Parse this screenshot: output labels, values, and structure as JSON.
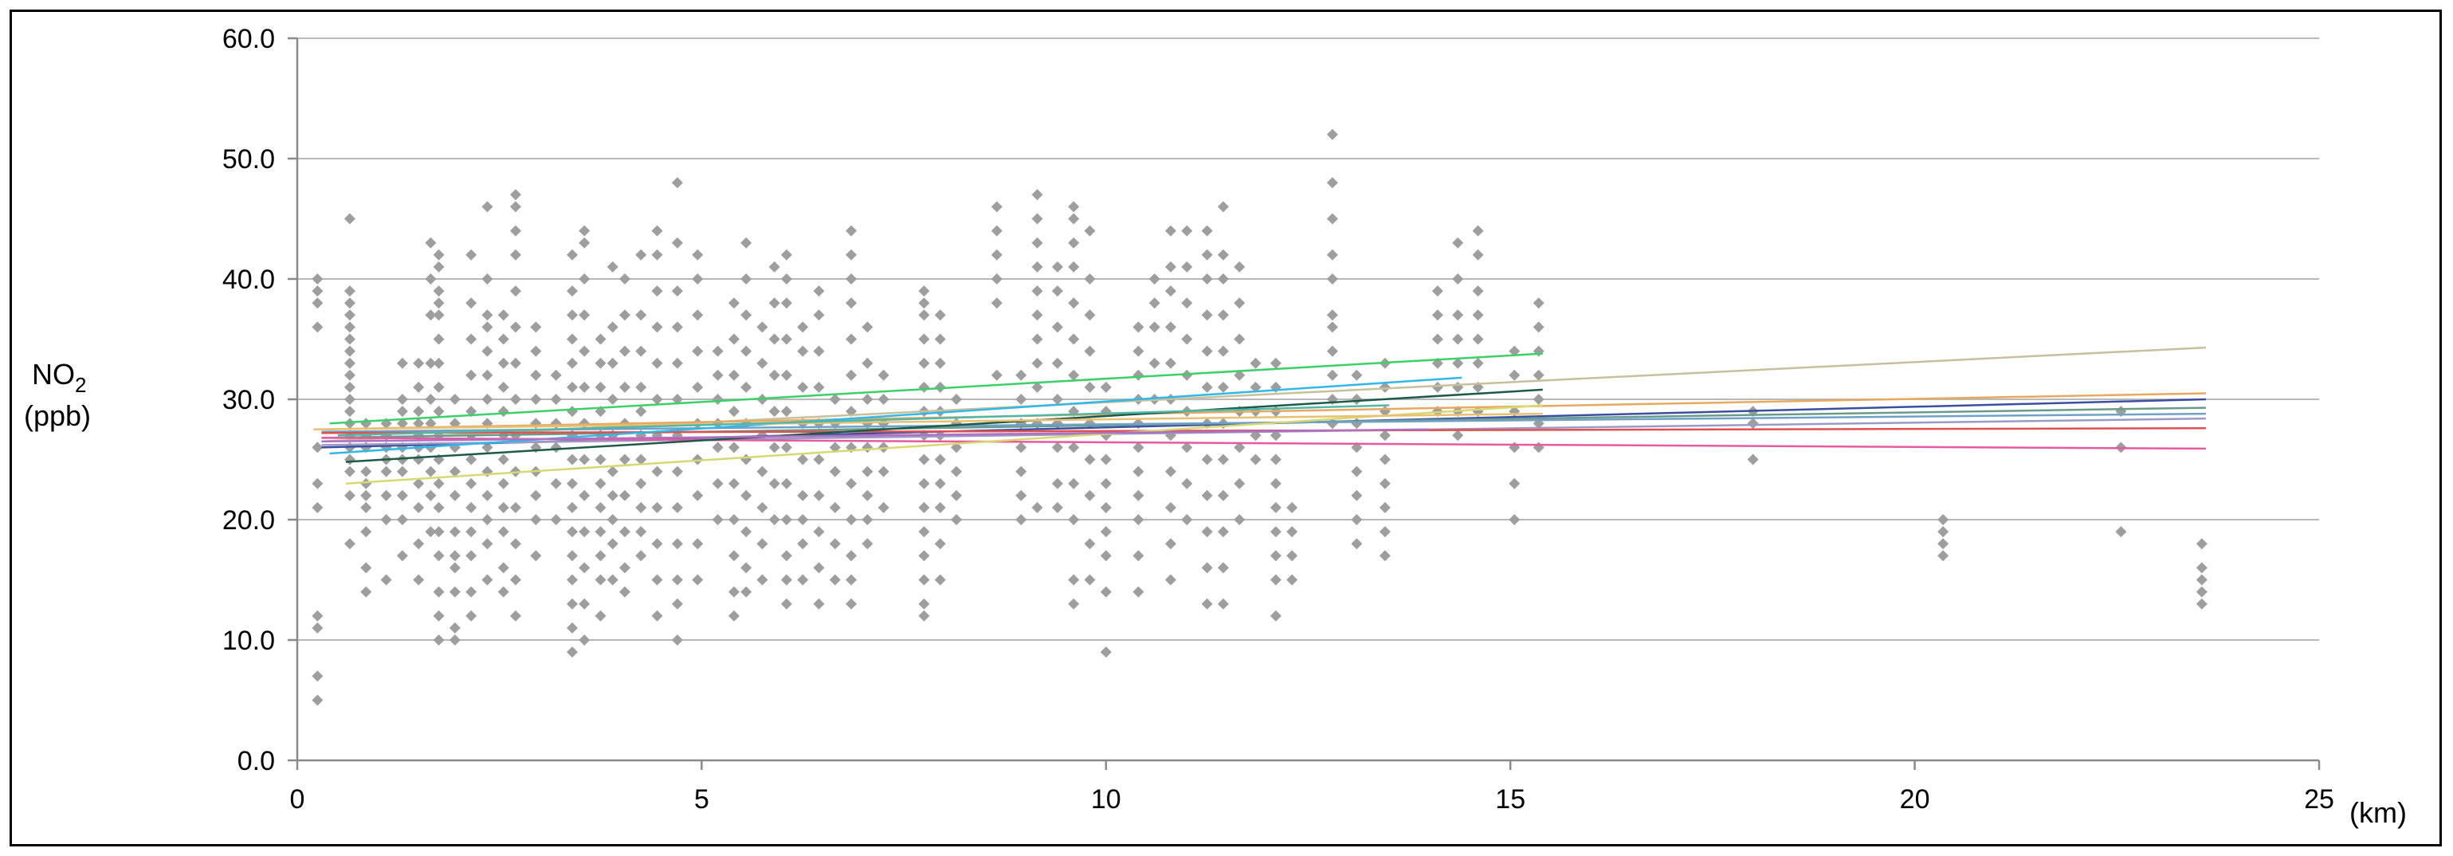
{
  "chart_data": {
    "type": "scatter",
    "title": "",
    "ylabel_main": "NO",
    "ylabel_sub": "2",
    "ylabel_unit": "(ppb)",
    "xlabel": "(km)",
    "xlim": [
      0,
      25
    ],
    "ylim": [
      0,
      60
    ],
    "x_ticks": [
      0,
      5,
      10,
      15,
      20,
      25
    ],
    "y_ticks": [
      "0.0",
      "10.0",
      "20.0",
      "30.0",
      "40.0",
      "50.0",
      "60.0"
    ],
    "y_tick_values": [
      0,
      10,
      20,
      30,
      40,
      50,
      60
    ],
    "grid": "horizontal",
    "point_color": "#9e9e9e",
    "point_columns": [
      {
        "x": 0.25,
        "y": [
          5,
          7,
          11,
          12,
          21,
          23,
          26,
          36,
          38,
          39,
          40
        ]
      },
      {
        "x": 0.65,
        "y": [
          18,
          22,
          24,
          25,
          26,
          27,
          28,
          29,
          30,
          31,
          32,
          33,
          34,
          35,
          36,
          37,
          38,
          39,
          45
        ]
      },
      {
        "x": 0.85,
        "y": [
          14,
          16,
          19,
          21,
          22,
          23,
          24,
          26,
          27,
          28
        ]
      },
      {
        "x": 1.1,
        "y": [
          15,
          20,
          22,
          24,
          25,
          26,
          27,
          28
        ]
      },
      {
        "x": 1.3,
        "y": [
          17,
          20,
          22,
          24,
          25,
          26,
          28,
          29,
          30,
          33
        ]
      },
      {
        "x": 1.5,
        "y": [
          15,
          18,
          21,
          23,
          25,
          26,
          27,
          28,
          29,
          31,
          33
        ]
      },
      {
        "x": 1.65,
        "y": [
          19,
          22,
          24,
          26,
          28,
          30,
          33,
          37,
          40,
          43
        ]
      },
      {
        "x": 1.75,
        "y": [
          10,
          12,
          14,
          17,
          19,
          21,
          23,
          25,
          27,
          29,
          31,
          33,
          35,
          37,
          38,
          39,
          41,
          42
        ]
      },
      {
        "x": 1.95,
        "y": [
          10,
          11,
          14,
          16,
          17,
          19,
          22,
          24,
          26,
          28,
          30
        ]
      },
      {
        "x": 2.15,
        "y": [
          12,
          14,
          17,
          19,
          21,
          23,
          25,
          27,
          29,
          32,
          35,
          38,
          42
        ]
      },
      {
        "x": 2.35,
        "y": [
          15,
          18,
          20,
          22,
          24,
          26,
          28,
          30,
          32,
          34,
          36,
          37,
          40,
          46
        ]
      },
      {
        "x": 2.55,
        "y": [
          14,
          16,
          19,
          21,
          23,
          25,
          27,
          29,
          31,
          33,
          35,
          37
        ]
      },
      {
        "x": 2.7,
        "y": [
          12,
          15,
          18,
          21,
          24,
          27,
          30,
          33,
          36,
          39,
          42,
          44,
          46,
          47
        ]
      },
      {
        "x": 2.95,
        "y": [
          17,
          20,
          22,
          24,
          26,
          28,
          30,
          32,
          34,
          36
        ]
      },
      {
        "x": 3.2,
        "y": [
          20,
          23,
          26,
          28,
          30,
          32
        ]
      },
      {
        "x": 3.4,
        "y": [
          9,
          11,
          13,
          15,
          17,
          19,
          21,
          23,
          25,
          27,
          29,
          31,
          33,
          35,
          37,
          39,
          42
        ]
      },
      {
        "x": 3.55,
        "y": [
          10,
          13,
          16,
          19,
          22,
          25,
          28,
          31,
          34,
          37,
          40,
          43,
          44
        ]
      },
      {
        "x": 3.75,
        "y": [
          12,
          15,
          17,
          19,
          21,
          23,
          25,
          27,
          29,
          31,
          33,
          35
        ]
      },
      {
        "x": 3.9,
        "y": [
          15,
          18,
          20,
          22,
          24,
          27,
          30,
          33,
          36,
          41
        ]
      },
      {
        "x": 4.05,
        "y": [
          14,
          16,
          19,
          22,
          25,
          28,
          31,
          34,
          37,
          40
        ]
      },
      {
        "x": 4.25,
        "y": [
          17,
          19,
          21,
          23,
          25,
          27,
          29,
          31,
          34,
          37,
          42
        ]
      },
      {
        "x": 4.45,
        "y": [
          12,
          15,
          18,
          21,
          24,
          27,
          30,
          33,
          36,
          39,
          42,
          44
        ]
      },
      {
        "x": 4.7,
        "y": [
          10,
          13,
          15,
          18,
          21,
          24,
          27,
          30,
          33,
          36,
          39,
          43,
          48
        ]
      },
      {
        "x": 4.95,
        "y": [
          15,
          18,
          22,
          25,
          28,
          31,
          34,
          37,
          40,
          42
        ]
      },
      {
        "x": 5.2,
        "y": [
          20,
          23,
          26,
          28,
          30,
          32,
          34
        ]
      },
      {
        "x": 5.4,
        "y": [
          12,
          14,
          17,
          20,
          23,
          26,
          29,
          32,
          35,
          38
        ]
      },
      {
        "x": 5.55,
        "y": [
          14,
          16,
          19,
          22,
          25,
          28,
          31,
          34,
          37,
          40,
          43
        ]
      },
      {
        "x": 5.75,
        "y": [
          15,
          18,
          21,
          24,
          27,
          30,
          33,
          36
        ]
      },
      {
        "x": 5.9,
        "y": [
          20,
          23,
          26,
          29,
          32,
          35,
          38,
          41
        ]
      },
      {
        "x": 6.05,
        "y": [
          13,
          15,
          17,
          20,
          23,
          26,
          29,
          32,
          35,
          38,
          40,
          42
        ]
      },
      {
        "x": 6.25,
        "y": [
          15,
          18,
          20,
          22,
          25,
          28,
          31,
          34,
          36
        ]
      },
      {
        "x": 6.45,
        "y": [
          13,
          16,
          19,
          22,
          25,
          28,
          31,
          34,
          37,
          39
        ]
      },
      {
        "x": 6.65,
        "y": [
          15,
          18,
          21,
          24,
          26,
          28,
          30
        ]
      },
      {
        "x": 6.85,
        "y": [
          13,
          15,
          17,
          20,
          23,
          26,
          29,
          32,
          35,
          38,
          40,
          42,
          44
        ]
      },
      {
        "x": 7.05,
        "y": [
          18,
          20,
          22,
          24,
          26,
          28,
          30,
          33,
          36
        ]
      },
      {
        "x": 7.25,
        "y": [
          21,
          24,
          26,
          28,
          30,
          32
        ]
      },
      {
        "x": 7.75,
        "y": [
          12,
          13,
          15,
          17,
          19,
          21,
          23,
          25,
          27,
          29,
          31,
          33,
          35,
          37,
          38,
          39
        ]
      },
      {
        "x": 7.95,
        "y": [
          15,
          18,
          21,
          23,
          25,
          27,
          29,
          31,
          33,
          35,
          37
        ]
      },
      {
        "x": 8.15,
        "y": [
          20,
          22,
          24,
          26,
          28,
          30
        ]
      },
      {
        "x": 8.65,
        "y": [
          32,
          38,
          40,
          42,
          44,
          46
        ]
      },
      {
        "x": 8.95,
        "y": [
          20,
          22,
          24,
          26,
          28,
          30,
          32
        ]
      },
      {
        "x": 9.15,
        "y": [
          21,
          28,
          31,
          33,
          35,
          37,
          39,
          41,
          43,
          45,
          47
        ]
      },
      {
        "x": 9.4,
        "y": [
          21,
          23,
          26,
          28,
          30,
          33,
          36,
          39,
          41
        ]
      },
      {
        "x": 9.6,
        "y": [
          13,
          15,
          20,
          23,
          26,
          29,
          32,
          35,
          38,
          41,
          43,
          45,
          46
        ]
      },
      {
        "x": 9.8,
        "y": [
          15,
          18,
          22,
          25,
          28,
          31,
          34,
          37,
          40,
          44
        ]
      },
      {
        "x": 10.0,
        "y": [
          9,
          14,
          17,
          19,
          21,
          23,
          25,
          27,
          29,
          31
        ]
      },
      {
        "x": 10.4,
        "y": [
          14,
          17,
          20,
          22,
          24,
          26,
          28,
          30,
          32,
          34,
          36
        ]
      },
      {
        "x": 10.6,
        "y": [
          30,
          33,
          36,
          38,
          40
        ]
      },
      {
        "x": 10.8,
        "y": [
          15,
          18,
          21,
          24,
          27,
          30,
          33,
          36,
          39,
          41,
          44
        ]
      },
      {
        "x": 11.0,
        "y": [
          20,
          23,
          26,
          29,
          32,
          35,
          38,
          41,
          44
        ]
      },
      {
        "x": 11.25,
        "y": [
          13,
          16,
          19,
          22,
          25,
          28,
          31,
          34,
          37,
          40,
          42,
          44
        ]
      },
      {
        "x": 11.45,
        "y": [
          13,
          16,
          19,
          22,
          25,
          28,
          31,
          34,
          37,
          40,
          42,
          46
        ]
      },
      {
        "x": 11.65,
        "y": [
          20,
          23,
          26,
          29,
          32,
          35,
          38,
          41
        ]
      },
      {
        "x": 11.85,
        "y": [
          25,
          27,
          29,
          31,
          33
        ]
      },
      {
        "x": 12.1,
        "y": [
          12,
          15,
          17,
          19,
          21,
          23,
          25,
          27,
          29,
          31,
          33
        ]
      },
      {
        "x": 12.3,
        "y": [
          15,
          17,
          19,
          21
        ]
      },
      {
        "x": 12.8,
        "y": [
          28,
          30,
          32,
          34,
          36,
          37,
          40,
          42,
          45,
          48,
          52
        ]
      },
      {
        "x": 13.1,
        "y": [
          18,
          20,
          22,
          24,
          26,
          28,
          30,
          32
        ]
      },
      {
        "x": 13.45,
        "y": [
          17,
          19,
          21,
          23,
          25,
          27,
          29,
          31,
          33
        ]
      },
      {
        "x": 14.1,
        "y": [
          29,
          31,
          33,
          35,
          37,
          39
        ]
      },
      {
        "x": 14.35,
        "y": [
          27,
          29,
          31,
          33,
          35,
          37,
          40,
          43
        ]
      },
      {
        "x": 14.6,
        "y": [
          29,
          31,
          33,
          35,
          37,
          39,
          42,
          44
        ]
      },
      {
        "x": 15.05,
        "y": [
          20,
          23,
          26,
          29,
          32,
          34
        ]
      },
      {
        "x": 15.35,
        "y": [
          26,
          28,
          30,
          32,
          34,
          36,
          38
        ]
      },
      {
        "x": 18.0,
        "y": [
          25,
          28,
          29
        ]
      },
      {
        "x": 20.35,
        "y": [
          17,
          18,
          19,
          20
        ]
      },
      {
        "x": 22.55,
        "y": [
          19,
          26,
          29
        ]
      },
      {
        "x": 23.55,
        "y": [
          13,
          14,
          15,
          16,
          18
        ]
      }
    ],
    "series": [
      {
        "color": "#c8c09a",
        "x": [
          0.3,
          23.6
        ],
        "y": [
          26.5,
          34.3
        ]
      },
      {
        "color": "#e8a860",
        "x": [
          0.3,
          23.6
        ],
        "y": [
          27.5,
          30.5
        ]
      },
      {
        "color": "#3a4fa0",
        "x": [
          0.3,
          23.6
        ],
        "y": [
          26.0,
          30.0
        ]
      },
      {
        "color": "#6a9a8a",
        "x": [
          0.3,
          23.6
        ],
        "y": [
          26.8,
          29.3
        ]
      },
      {
        "color": "#6fa0c8",
        "x": [
          0.3,
          23.6
        ],
        "y": [
          27.3,
          28.8
        ]
      },
      {
        "color": "#9a9ac8",
        "x": [
          0.3,
          23.6
        ],
        "y": [
          26.2,
          28.4
        ]
      },
      {
        "color": "#e05050",
        "x": [
          0.3,
          23.6
        ],
        "y": [
          27.2,
          27.6
        ]
      },
      {
        "color": "#e85aa0",
        "x": [
          0.3,
          23.6
        ],
        "y": [
          26.8,
          25.9
        ]
      },
      {
        "color": "#3cd068",
        "x": [
          0.4,
          15.4
        ],
        "y": [
          28.0,
          33.8
        ]
      },
      {
        "color": "#30b8e8",
        "x": [
          0.4,
          14.4
        ],
        "y": [
          25.5,
          31.8
        ]
      },
      {
        "color": "#1e5a48",
        "x": [
          0.6,
          15.4
        ],
        "y": [
          24.8,
          30.8
        ]
      },
      {
        "color": "#d8d870",
        "x": [
          0.6,
          15.4
        ],
        "y": [
          23.0,
          29.5
        ]
      },
      {
        "color": "#e8c070",
        "x": [
          0.2,
          15.4
        ],
        "y": [
          27.5,
          28.8
        ]
      },
      {
        "color": "#b070c0",
        "x": [
          0.3,
          14.0
        ],
        "y": [
          26.5,
          27.5
        ]
      },
      {
        "color": "#50b8a8",
        "x": [
          0.5,
          13.5
        ],
        "y": [
          27.0,
          29.5
        ]
      }
    ]
  }
}
